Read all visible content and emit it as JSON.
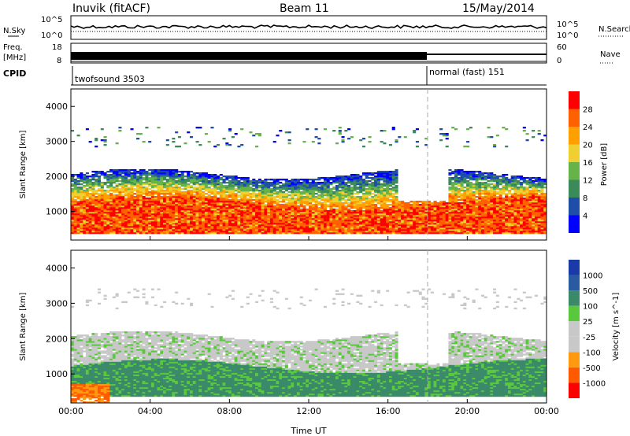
{
  "header": {
    "station": "Inuvik (fitACF)",
    "beam": "Beam 11",
    "date": "15/May/2014"
  },
  "sky_panel": {
    "left_label": "N.Sky",
    "right_label": "N.Search",
    "left_ticks": [
      "10^5",
      "10^0"
    ],
    "right_ticks": [
      "10^5",
      "10^0"
    ]
  },
  "freq_panel": {
    "left_label_1": "Freq.",
    "left_label_2": "[MHz]",
    "right_label": "Nave",
    "left_ticks": [
      "18",
      "8"
    ],
    "right_ticks": [
      "60",
      "0"
    ]
  },
  "cpid_panel": {
    "label": "CPID",
    "modes": [
      {
        "name": "twofsound 3503",
        "start_hour": 0
      },
      {
        "name": "normal (fast) 151",
        "start_hour": 18
      }
    ]
  },
  "x_axis": {
    "title": "Time UT",
    "ticks": [
      "00:00",
      "04:00",
      "08:00",
      "12:00",
      "16:00",
      "20:00",
      "00:00"
    ],
    "range_hours": [
      0,
      24
    ]
  },
  "colors": {
    "power": [
      "#0000ff",
      "#1f4ea8",
      "#3a8a5a",
      "#66b34a",
      "#f0d030",
      "#ffa000",
      "#ff6000",
      "#ff0000"
    ],
    "velocity": [
      "#ff0000",
      "#ff5a00",
      "#ff9a10",
      "#c8c8c8",
      "#c8c8c8",
      "#5ac83c",
      "#3a8a6a",
      "#2a5aa0",
      "#1a3aa8"
    ]
  },
  "chart_data": [
    {
      "type": "heatmap",
      "title": "",
      "xlabel": "Time UT",
      "ylabel": "Slant Range [km]",
      "ylim": [
        180,
        4500
      ],
      "yticks": [
        1000,
        2000,
        3000,
        4000
      ],
      "colorbar": {
        "label": "Power [dB]",
        "ticks": [
          4,
          8,
          12,
          16,
          20,
          24,
          28
        ],
        "range": [
          0,
          32
        ]
      },
      "description_bands": [
        {
          "x": [
            0,
            24
          ],
          "y": [
            300,
            1200
          ],
          "value_range": [
            20,
            30
          ]
        },
        {
          "x": [
            0,
            24
          ],
          "y": [
            1200,
            2100
          ],
          "value_range": [
            8,
            26
          ]
        }
      ]
    },
    {
      "type": "heatmap",
      "title": "",
      "xlabel": "Time UT",
      "ylabel": "Slant Range [km]",
      "ylim": [
        180,
        4500
      ],
      "yticks": [
        1000,
        2000,
        3000,
        4000
      ],
      "colorbar": {
        "label": "Velocity [m s^-1]",
        "ticks": [
          1000,
          500,
          100,
          25,
          -25,
          -100,
          -500,
          -1000
        ]
      }
    }
  ]
}
